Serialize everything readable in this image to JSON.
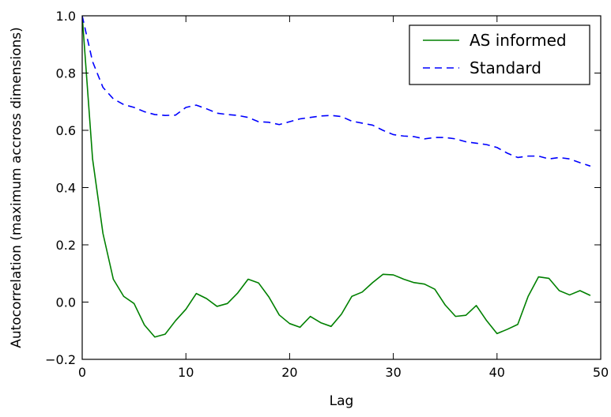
{
  "chart_data": {
    "type": "line",
    "title": "",
    "xlabel": "Lag",
    "ylabel": "Autocorrelation (maximum accross dimensions)",
    "xlim": [
      0,
      50
    ],
    "ylim": [
      -0.2,
      1.0
    ],
    "xticks": [
      0,
      10,
      20,
      30,
      40,
      50
    ],
    "yticks": [
      -0.2,
      0.0,
      0.2,
      0.4,
      0.6,
      0.8,
      1.0
    ],
    "xtick_labels": [
      "0",
      "10",
      "20",
      "30",
      "40",
      "50"
    ],
    "ytick_labels": [
      "−0.2",
      "0.0",
      "0.2",
      "0.4",
      "0.6",
      "0.8",
      "1.0"
    ],
    "grid": false,
    "legend_position": "top-right",
    "x": [
      0,
      1,
      2,
      3,
      4,
      5,
      6,
      7,
      8,
      9,
      10,
      11,
      12,
      13,
      14,
      15,
      16,
      17,
      18,
      19,
      20,
      21,
      22,
      23,
      24,
      25,
      26,
      27,
      28,
      29,
      30,
      31,
      32,
      33,
      34,
      35,
      36,
      37,
      38,
      39,
      40,
      41,
      42,
      43,
      44,
      45,
      46,
      47,
      48,
      49
    ],
    "series": [
      {
        "name": "AS informed",
        "color": "#008000",
        "style": "solid",
        "values": [
          1.0,
          0.5,
          0.24,
          0.08,
          0.02,
          -0.005,
          -0.08,
          -0.122,
          -0.112,
          -0.065,
          -0.025,
          0.03,
          0.012,
          -0.015,
          -0.005,
          0.032,
          0.08,
          0.067,
          0.018,
          -0.045,
          -0.075,
          -0.088,
          -0.05,
          -0.072,
          -0.085,
          -0.042,
          0.02,
          0.035,
          0.068,
          0.097,
          0.095,
          0.08,
          0.068,
          0.063,
          0.045,
          -0.01,
          -0.05,
          -0.046,
          -0.012,
          -0.065,
          -0.11,
          -0.095,
          -0.078,
          0.02,
          0.088,
          0.083,
          0.04,
          0.025,
          0.04,
          0.023
        ]
      },
      {
        "name": "Standard",
        "color": "#0000ff",
        "style": "dashed",
        "values": [
          1.0,
          0.84,
          0.75,
          0.71,
          0.69,
          0.68,
          0.665,
          0.655,
          0.652,
          0.653,
          0.68,
          0.688,
          0.675,
          0.66,
          0.655,
          0.652,
          0.645,
          0.63,
          0.628,
          0.62,
          0.63,
          0.64,
          0.645,
          0.65,
          0.652,
          0.648,
          0.632,
          0.625,
          0.618,
          0.6,
          0.585,
          0.58,
          0.578,
          0.57,
          0.575,
          0.575,
          0.57,
          0.56,
          0.555,
          0.55,
          0.54,
          0.52,
          0.505,
          0.51,
          0.51,
          0.5,
          0.505,
          0.5,
          0.487,
          0.475
        ]
      }
    ]
  }
}
